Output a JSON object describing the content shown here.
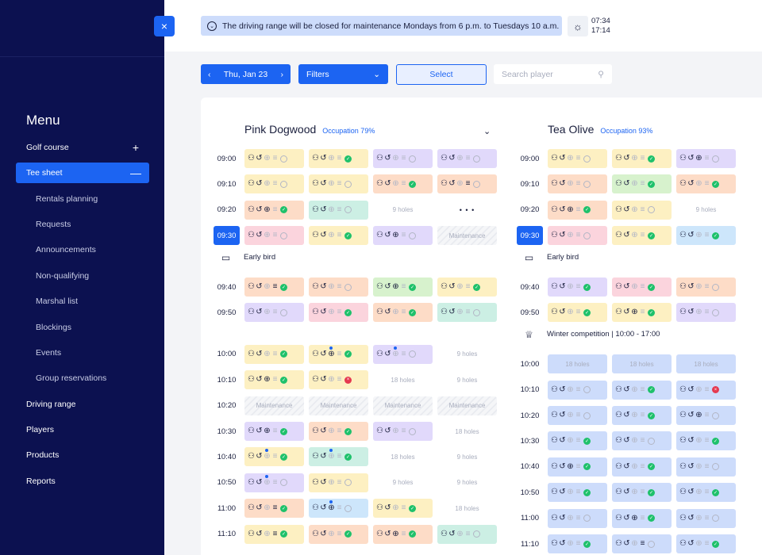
{
  "sidebar": {
    "menu_title": "Menu",
    "items": [
      {
        "label": "Golf course",
        "type": "top",
        "expand": "+"
      },
      {
        "label": "Tee sheet",
        "type": "active",
        "expand": "—"
      },
      {
        "label": "Rentals planning",
        "type": "sub"
      },
      {
        "label": "Requests",
        "type": "sub"
      },
      {
        "label": "Announcements",
        "type": "sub"
      },
      {
        "label": "Non-qualifying",
        "type": "sub"
      },
      {
        "label": "Marshal list",
        "type": "sub"
      },
      {
        "label": "Blockings",
        "type": "sub"
      },
      {
        "label": "Events",
        "type": "sub"
      },
      {
        "label": "Group reservations",
        "type": "sub"
      },
      {
        "label": "Driving range",
        "type": "top"
      },
      {
        "label": "Players",
        "type": "top"
      },
      {
        "label": "Products",
        "type": "top"
      },
      {
        "label": "Reports",
        "type": "top"
      }
    ],
    "close_icon": "×"
  },
  "topbar": {
    "notice": "The driving range will be closed for maintenance Mondays from 6 p.m. to Tuesdays 10 a.m.",
    "sunrise": "07:34",
    "sunset": "17:14"
  },
  "controls": {
    "date": "Thu, Jan 23",
    "filters": "Filters",
    "select": "Select",
    "search_placeholder": "Search player"
  },
  "courses": [
    {
      "name": "Pink Dogwood",
      "occupation": "Occupation 79%",
      "rows": [
        {
          "time": "09:00",
          "slots": [
            [
              "yellow",
              "p"
            ],
            [
              "yellow",
              "ok"
            ],
            [
              "purple",
              "p"
            ],
            [
              "purple",
              "p"
            ]
          ]
        },
        {
          "time": "09:10",
          "slots": [
            [
              "yellow",
              "p"
            ],
            [
              "yellow",
              "p"
            ],
            [
              "orange",
              "ok"
            ],
            [
              "orange",
              "pf"
            ]
          ]
        },
        {
          "time": "09:20",
          "slots": [
            [
              "orange",
              "okx"
            ],
            [
              "teal",
              "pl"
            ],
            [
              "text",
              "9 holes"
            ],
            [
              "dots",
              "• • •"
            ]
          ]
        },
        {
          "time": "09:30",
          "active": true,
          "slots": [
            [
              "pink",
              "p"
            ],
            [
              "yellow",
              "ok"
            ],
            [
              "purple",
              "px"
            ],
            [
              "maint",
              "Maintenance"
            ]
          ]
        },
        {
          "sep": "Early bird",
          "icon": "calendar-icon"
        },
        {
          "time": "09:40",
          "slots": [
            [
              "orange",
              "okf"
            ],
            [
              "orange",
              "p"
            ],
            [
              "green",
              "okx"
            ],
            [
              "yellow",
              "ok"
            ]
          ]
        },
        {
          "time": "09:50",
          "slots": [
            [
              "purple",
              "p"
            ],
            [
              "pink",
              "ok"
            ],
            [
              "orange",
              "ok"
            ],
            [
              "teal",
              "p"
            ]
          ]
        },
        {
          "gap": true
        },
        {
          "time": "10:00",
          "slots": [
            [
              "yellow",
              "ok"
            ],
            [
              "yellow",
              "okxd"
            ],
            [
              "purple",
              "pd"
            ],
            [
              "text",
              "9 holes"
            ]
          ]
        },
        {
          "time": "10:10",
          "slots": [
            [
              "yellow",
              "okx"
            ],
            [
              "yellow",
              "no"
            ],
            [
              "text",
              "18 holes"
            ],
            [
              "text",
              "9 holes"
            ]
          ]
        },
        {
          "time": "10:20",
          "slots": [
            [
              "maint",
              "Maintenance"
            ],
            [
              "maint",
              "Maintenance"
            ],
            [
              "maint",
              "Maintenance"
            ],
            [
              "maint",
              "Maintenance"
            ]
          ]
        },
        {
          "time": "10:30",
          "slots": [
            [
              "purple",
              "okx"
            ],
            [
              "orange",
              "ok"
            ],
            [
              "purple",
              "p"
            ],
            [
              "text",
              "18 holes"
            ]
          ]
        },
        {
          "time": "10:40",
          "slots": [
            [
              "yellow",
              "okd"
            ],
            [
              "teal",
              "okd"
            ],
            [
              "text",
              "18 holes"
            ],
            [
              "text",
              "9 holes"
            ]
          ]
        },
        {
          "time": "10:50",
          "slots": [
            [
              "purple",
              "pd"
            ],
            [
              "yellow",
              "p"
            ],
            [
              "text",
              "9 holes"
            ],
            [
              "text",
              "9 holes"
            ]
          ]
        },
        {
          "time": "11:00",
          "slots": [
            [
              "orange",
              "okf"
            ],
            [
              "blue",
              "pxd"
            ],
            [
              "yellow",
              "ok"
            ],
            [
              "text",
              "18 holes"
            ]
          ]
        },
        {
          "time": "11:10",
          "slots": [
            [
              "yellow",
              "okf"
            ],
            [
              "orange",
              "ok"
            ],
            [
              "orange",
              "okx"
            ],
            [
              "teal",
              "p"
            ]
          ]
        }
      ]
    },
    {
      "name": "Tea Olive",
      "occupation": "Occupation 93%",
      "rows": [
        {
          "time": "09:00",
          "slots": [
            [
              "yellow",
              "p"
            ],
            [
              "yellow",
              "ok"
            ],
            [
              "purple",
              "px"
            ]
          ]
        },
        {
          "time": "09:10",
          "slots": [
            [
              "orange",
              "p"
            ],
            [
              "green",
              "ok"
            ],
            [
              "orange",
              "ok"
            ]
          ]
        },
        {
          "time": "09:20",
          "slots": [
            [
              "orange",
              "okx"
            ],
            [
              "yellow",
              "p"
            ],
            [
              "text",
              "9 holes"
            ]
          ]
        },
        {
          "time": "09:30",
          "active": true,
          "slots": [
            [
              "pink",
              "p"
            ],
            [
              "yellow",
              "ok"
            ],
            [
              "blue",
              "ok"
            ]
          ]
        },
        {
          "sep": "Early bird",
          "icon": "calendar-icon"
        },
        {
          "time": "09:40",
          "slots": [
            [
              "purple",
              "ok"
            ],
            [
              "pink",
              "ok"
            ],
            [
              "orange",
              "p"
            ]
          ]
        },
        {
          "time": "09:50",
          "slots": [
            [
              "yellow",
              "ok"
            ],
            [
              "yellow",
              "okx"
            ],
            [
              "purple",
              "p"
            ]
          ]
        },
        {
          "sep": "Winter competition  |  10:00 - 17:00",
          "icon": "trophy-icon"
        },
        {
          "time": "10:00",
          "slots": [
            [
              "bluegrey_t",
              "18 holes"
            ],
            [
              "bluegrey_t",
              "18 holes"
            ],
            [
              "bluegrey_t",
              "18 holes"
            ]
          ]
        },
        {
          "time": "10:10",
          "slots": [
            [
              "bluegrey",
              "p"
            ],
            [
              "bluegrey",
              "ok"
            ],
            [
              "bluegrey",
              "no"
            ]
          ]
        },
        {
          "time": "10:20",
          "slots": [
            [
              "bluegrey",
              "p"
            ],
            [
              "bluegrey",
              "ok"
            ],
            [
              "bluegrey",
              "px"
            ]
          ]
        },
        {
          "time": "10:30",
          "slots": [
            [
              "bluegrey",
              "ok"
            ],
            [
              "bluegrey",
              "p"
            ],
            [
              "bluegrey",
              "ok"
            ]
          ]
        },
        {
          "time": "10:40",
          "slots": [
            [
              "bluegrey",
              "okx"
            ],
            [
              "bluegrey",
              "ok"
            ],
            [
              "bluegrey",
              "p"
            ]
          ]
        },
        {
          "time": "10:50",
          "slots": [
            [
              "bluegrey",
              "ok"
            ],
            [
              "bluegrey",
              "ok"
            ],
            [
              "bluegrey",
              "ok"
            ]
          ]
        },
        {
          "time": "11:00",
          "slots": [
            [
              "bluegrey",
              "p"
            ],
            [
              "bluegrey",
              "okx"
            ],
            [
              "bluegrey",
              "p"
            ]
          ]
        },
        {
          "time": "11:10",
          "slots": [
            [
              "bluegrey",
              "ok"
            ],
            [
              "bluegrey",
              "pf"
            ],
            [
              "bluegrey",
              "ok"
            ]
          ]
        }
      ]
    }
  ],
  "colors": {
    "sidebar_bg": "#0c1150",
    "accent": "#1c64f2"
  }
}
